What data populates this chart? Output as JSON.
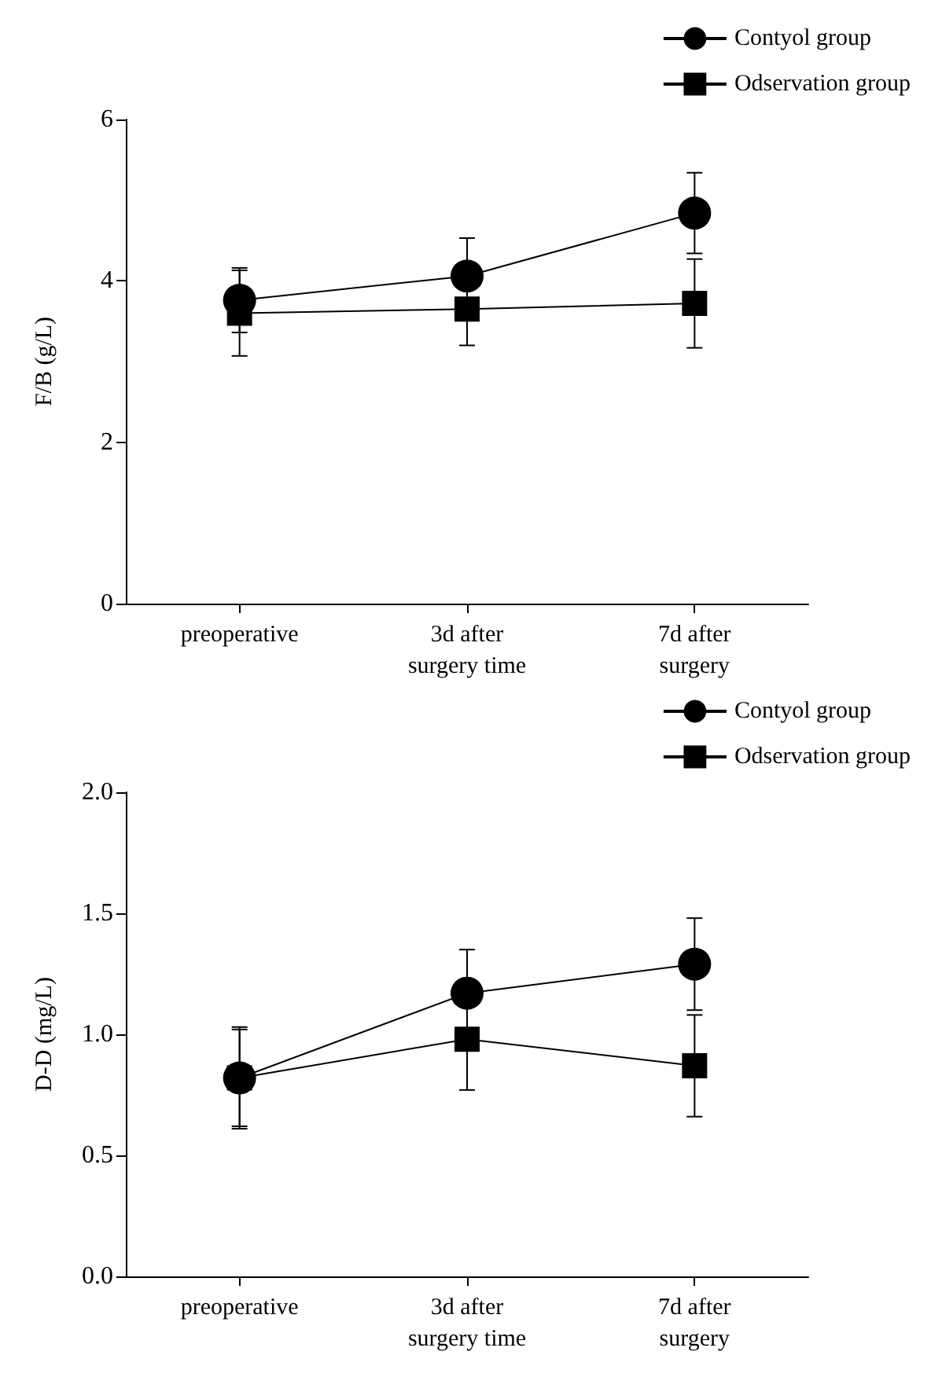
{
  "chart_data": [
    {
      "type": "line",
      "ylabel": "F/B (g/L)",
      "categories": [
        "preoperative",
        "3d after\nsurgery time",
        "7d after\nsurgery"
      ],
      "ylim": [
        0,
        6
      ],
      "yticks": [
        0,
        2,
        4,
        6
      ],
      "grid": false,
      "legend": "top right",
      "line_style": "solid",
      "series": [
        {
          "name": "Contyol group",
          "color": "#000000",
          "marker": "circle",
          "values": [
            3.76,
            4.06,
            4.84
          ],
          "errors": [
            0.4,
            0.47,
            0.5
          ]
        },
        {
          "name": "Odservation group",
          "color": "#000000",
          "marker": "square",
          "values": [
            3.6,
            3.65,
            3.72
          ],
          "errors": [
            0.53,
            0.45,
            0.55
          ]
        }
      ]
    },
    {
      "type": "line",
      "ylabel": "D-D (mg/L)",
      "categories": [
        "preoperative",
        "3d after\nsurgery time",
        "7d after\nsurgery"
      ],
      "ylim": [
        0,
        2
      ],
      "yticks": [
        {
          "value": 0,
          "label": "0.0"
        },
        {
          "value": 0.5,
          "label": "0.5"
        },
        {
          "value": 1,
          "label": "1.0"
        },
        {
          "value": 1.5,
          "label": "1.5"
        },
        {
          "value": 2,
          "label": "2.0"
        }
      ],
      "grid": false,
      "legend": "top right",
      "line_style": "solid",
      "series": [
        {
          "name": "Contyol group",
          "color": "#000000",
          "marker": "circle",
          "values": [
            0.82,
            1.17,
            1.29
          ],
          "errors": [
            0.21,
            0.18,
            0.19
          ]
        },
        {
          "name": "Odservation group",
          "color": "#000000",
          "marker": "square",
          "values": [
            0.82,
            0.98,
            0.87
          ],
          "errors": [
            0.2,
            0.21,
            0.21
          ]
        }
      ]
    }
  ]
}
